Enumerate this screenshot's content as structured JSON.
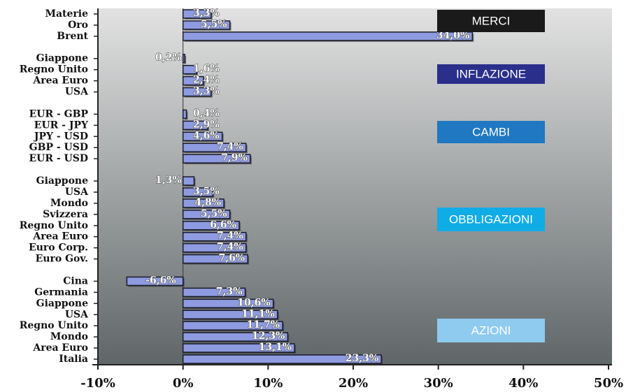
{
  "chart_data": {
    "type": "bar",
    "orientation": "horizontal",
    "categories": [
      "Materie",
      "Oro",
      "Brent",
      null,
      "Giappone",
      "Regno Unito",
      "Area Euro",
      "USA",
      null,
      "EUR - GBP",
      "EUR - JPY",
      "JPY - USD",
      "GBP - USD",
      "EUR - USD",
      null,
      "Giappone",
      "USA",
      "Mondo",
      "Svizzera",
      "Regno Unito",
      "Area Euro",
      "Euro Corp.",
      "Euro Gov.",
      null,
      "Cina",
      "Germania",
      "Giappone",
      "USA",
      "Regno Unito",
      "Mondo",
      "Area Euro",
      "Italia"
    ],
    "values": [
      3.3,
      5.5,
      34.0,
      null,
      0.2,
      1.6,
      2.4,
      3.3,
      null,
      0.4,
      2.9,
      4.6,
      7.4,
      7.9,
      null,
      1.3,
      3.5,
      4.8,
      5.5,
      6.6,
      7.4,
      7.4,
      7.6,
      null,
      -6.6,
      7.3,
      10.6,
      11.1,
      11.7,
      12.3,
      13.1,
      23.3
    ],
    "value_labels": [
      "3,3%",
      "5,5%",
      "34,0%",
      null,
      "0,2%",
      "1,6%",
      "2,4%",
      "3,3%",
      null,
      "0,4%",
      "2,9%",
      "4,6%",
      "7,4%",
      "7,9%",
      null,
      "1,3%",
      "3,5%",
      "4,8%",
      "5,5%",
      "6,6%",
      "7,4%",
      "7,4%",
      "7,6%",
      null,
      "-6,6%",
      "7,3%",
      "10,6%",
      "11,1%",
      "11,7%",
      "12,3%",
      "13,1%",
      "23,3%"
    ],
    "color": "#8e9be0",
    "xlim": [
      -10,
      50
    ],
    "xticks": [
      {
        "value": -10,
        "label": "-10%"
      },
      {
        "value": 0,
        "label": "0%"
      },
      {
        "value": 10,
        "label": "10%"
      },
      {
        "value": 20,
        "label": "20%"
      },
      {
        "value": 30,
        "label": "30%"
      },
      {
        "value": 40,
        "label": "40%"
      },
      {
        "value": 50,
        "label": "50%"
      }
    ],
    "annotations": [
      {
        "text": "MERCI",
        "color": "#1a1a1a"
      },
      {
        "text": "INFLAZIONE",
        "color": "#2a2f8c"
      },
      {
        "text": "CAMBI",
        "color": "#1f78c1"
      },
      {
        "text": "OBBLIGAZIONI",
        "color": "#10ace6"
      },
      {
        "text": "AZIONI",
        "color": "#8fcaef"
      }
    ]
  }
}
